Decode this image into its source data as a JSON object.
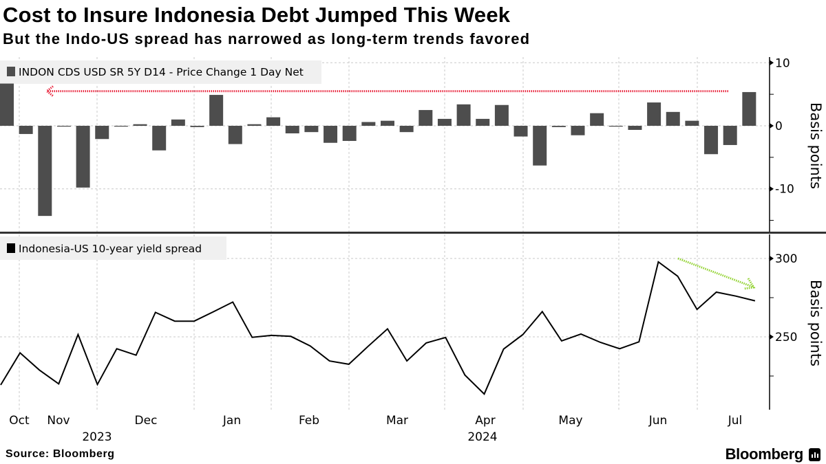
{
  "header": {
    "title": "Cost to Insure Indonesia Debt Jumped This Week",
    "subtitle": "But the Indo-US spread has narrowed as long-term trends favored"
  },
  "footer": {
    "source": "Source: Bloomberg",
    "logo": "Bloomberg"
  },
  "colors": {
    "bars": "#4d4d4d",
    "line": "#000000",
    "red_arrow": "#e8273f",
    "green_arrow": "#8fd12b",
    "grid": "#c8c8c8",
    "legend_bg": "#f0f0f0"
  },
  "chart_data": [
    {
      "type": "bar",
      "legend": "INDON CDS USD SR 5Y D14 - Price Change 1 Day Net",
      "ylabel": "Basis points",
      "yticks": [
        10,
        0,
        -10
      ],
      "ylim": [
        -16.9,
        10.9
      ],
      "grid": true,
      "legend_placement": "top-left",
      "values": [
        6.7,
        -1.3,
        -14.3,
        -0.1,
        -9.8,
        -2.1,
        -0.1,
        0.25,
        -3.9,
        1.0,
        -0.2,
        4.9,
        -2.9,
        0.25,
        1.35,
        -1.2,
        -1.0,
        -2.7,
        -2.4,
        0.6,
        0.8,
        -1.0,
        2.5,
        1.1,
        3.4,
        1.1,
        3.3,
        -1.7,
        -6.3,
        -0.2,
        -1.5,
        2.0,
        0.0,
        -0.65,
        3.7,
        2.2,
        0.8,
        -4.5,
        -3.05,
        5.35
      ],
      "annotation": {
        "type": "arrow",
        "direction": "left",
        "color": "red",
        "level": 5.5
      }
    },
    {
      "type": "line",
      "legend": "Indonesia-US 10-year yield spread",
      "ylabel": "Basis points",
      "yticks": [
        300,
        250
      ],
      "ylim": [
        204,
        315
      ],
      "grid": true,
      "legend_placement": "top-left",
      "values": [
        219.3,
        239.8,
        228.8,
        220.0,
        251.5,
        219.6,
        242.4,
        238.3,
        265.6,
        260.0,
        260.0,
        266.0,
        272.2,
        249.7,
        250.9,
        250.3,
        244.2,
        234.6,
        232.5,
        244.0,
        255.1,
        234.6,
        246.1,
        249.6,
        225.6,
        213.5,
        242.2,
        251.5,
        266.1,
        247.4,
        251.8,
        246.5,
        242.4,
        246.8,
        297.8,
        288.7,
        267.5,
        278.5,
        276.0,
        273.0
      ],
      "annotation": {
        "type": "arrow",
        "direction": "down-right",
        "color": "green"
      }
    }
  ],
  "xaxis": {
    "months": [
      "Oct",
      "Nov",
      "Dec",
      "Jan",
      "Feb",
      "Mar",
      "Apr",
      "May",
      "Jun",
      "Jul"
    ],
    "years": [
      "2023",
      "2024"
    ]
  }
}
